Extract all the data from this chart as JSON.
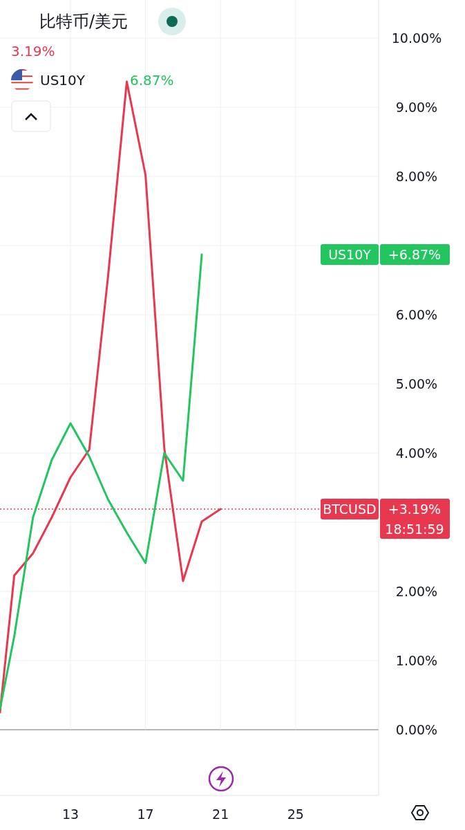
{
  "chart_data": {
    "type": "line",
    "title": "比特币/美元",
    "series": [
      {
        "name": "BTCUSD",
        "color": "#e8384f",
        "x": [
          9.24,
          10,
          11,
          12,
          13,
          14,
          15,
          16,
          17,
          18,
          19,
          20,
          21
        ],
        "values": [
          0.25,
          2.23,
          2.55,
          3.07,
          3.65,
          4.05,
          6.55,
          9.37,
          8.02,
          4.07,
          2.15,
          3.01,
          3.19
        ]
      },
      {
        "name": "US10Y",
        "color": "#22c55e",
        "x": [
          9.24,
          10,
          11,
          12,
          13,
          14,
          15,
          16,
          17,
          18,
          19,
          20
        ],
        "values": [
          0.3,
          1.35,
          3.07,
          3.9,
          4.43,
          3.95,
          3.33,
          2.85,
          2.41,
          4.0,
          3.6,
          6.87
        ]
      }
    ],
    "xlim": [
      9.24,
      29.43
    ],
    "xticks": [
      13,
      17,
      21,
      25
    ],
    "ylim": [
      0,
      10
    ],
    "yticks": [
      {
        "value": 0,
        "label": "0.00%"
      },
      {
        "value": 1,
        "label": "1.00%"
      },
      {
        "value": 2,
        "label": "2.00%"
      },
      {
        "value": 3,
        "label": null
      },
      {
        "value": 4,
        "label": "4.00%"
      },
      {
        "value": 5,
        "label": "5.00%"
      },
      {
        "value": 6,
        "label": "6.00%"
      },
      {
        "value": 7,
        "label": null
      },
      {
        "value": 8,
        "label": "8.00%"
      },
      {
        "value": 9,
        "label": "9.00%"
      },
      {
        "value": 10,
        "label": "10.00%"
      }
    ],
    "grid": true,
    "line_style": "solid",
    "marker": "none",
    "ref_lines": [
      {
        "axis": "y",
        "value": 3.19,
        "color": "#e8384f",
        "line_style": "dotted"
      }
    ],
    "annotations": [
      "3.19%",
      "6.87%",
      "+6.87%",
      "+3.19%",
      "18:51:59"
    ]
  }
}
